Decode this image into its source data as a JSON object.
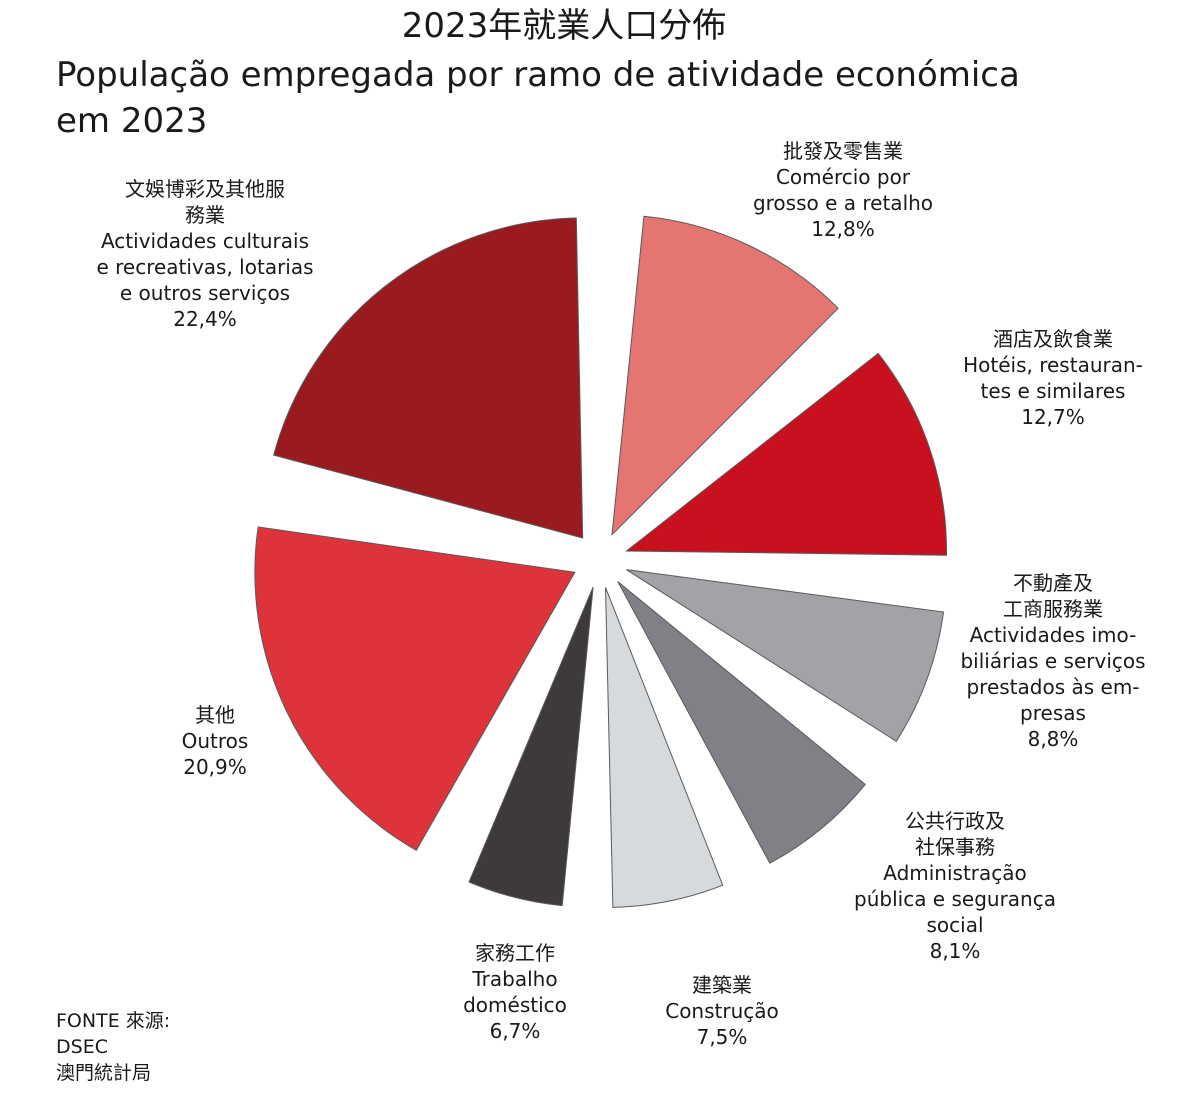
{
  "title_zh": "2023年就業人口分佈",
  "title_pt_line1": "População empregada por ramo de atividade económica",
  "title_pt_line2": "em 2023",
  "source": {
    "line1": "FONTE 來源:",
    "line2": "DSEC",
    "line3": "澳門統計局"
  },
  "chart_data": {
    "type": "pie",
    "title": "2023年就業人口分佈 / População empregada por ramo de atividade económica em 2023",
    "unit": "%",
    "slices": [
      {
        "name_zh": [
          "批發及零售業"
        ],
        "name_pt": [
          "Comércio por",
          "grosso e a retalho"
        ],
        "value": 12.8,
        "value_label": "12,8%",
        "color": "#e57570"
      },
      {
        "name_zh": [
          "酒店及飲食業"
        ],
        "name_pt": [
          "Hotéis, restauran-",
          "tes e similares"
        ],
        "value": 12.7,
        "value_label": "12,7%",
        "color": "#c8101e"
      },
      {
        "name_zh": [
          "不動產及",
          "工商服務業"
        ],
        "name_pt": [
          "Actividades imo-",
          "biliárias e serviços",
          "prestados às em-",
          "presas"
        ],
        "value": 8.8,
        "value_label": "8,8%",
        "color": "#a3a3a7"
      },
      {
        "name_zh": [
          "公共行政及",
          "社保事務"
        ],
        "name_pt": [
          "Administração",
          "pública e segurança",
          "social"
        ],
        "value": 8.1,
        "value_label": "8,1%",
        "color": "#808086"
      },
      {
        "name_zh": [
          "建築業"
        ],
        "name_pt": [
          "Construção"
        ],
        "value": 7.5,
        "value_label": "7,5%",
        "color": "#d7dadd"
      },
      {
        "name_zh": [
          "家務工作"
        ],
        "name_pt": [
          "Trabalho",
          "doméstico"
        ],
        "value": 6.7,
        "value_label": "6,7%",
        "color": "#3f3a3a"
      },
      {
        "name_zh": [
          "其他"
        ],
        "name_pt": [
          "Outros"
        ],
        "value": 20.9,
        "value_label": "20,9%",
        "color": "#de333b"
      },
      {
        "name_zh": [
          "文娛博彩及其他服",
          "務業"
        ],
        "name_pt": [
          "Actividades culturais",
          "e recreativas, lotarias",
          "e outros serviços"
        ],
        "value": 22.4,
        "value_label": "22,4%",
        "color": "#991b20"
      }
    ]
  }
}
